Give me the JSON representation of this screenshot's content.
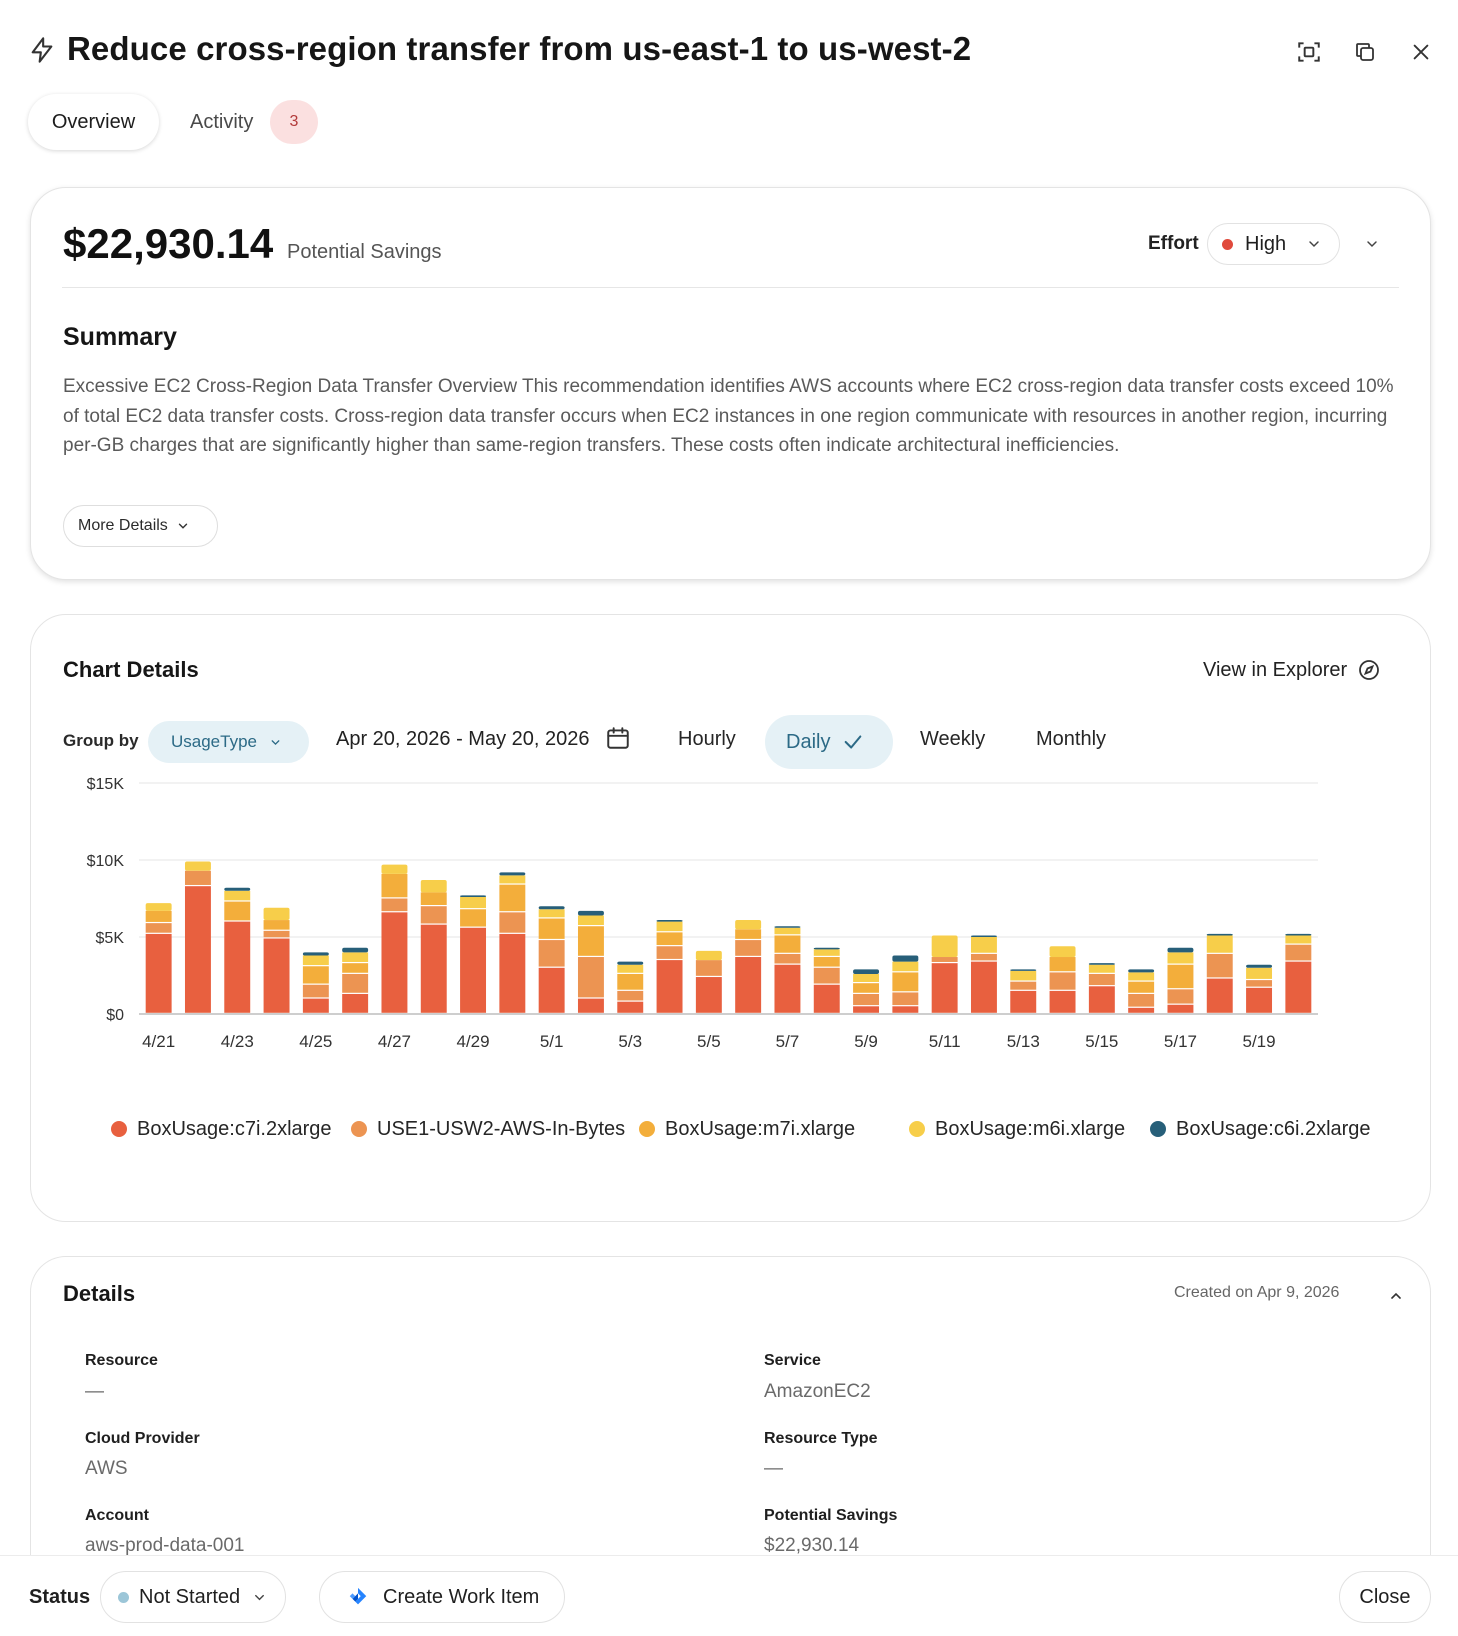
{
  "header": {
    "title": "Reduce cross-region transfer from us-east-1 to us-west-2",
    "icons": [
      "bolt-icon",
      "focus-icon",
      "copy-icon",
      "close-icon"
    ]
  },
  "tabs": {
    "overview": "Overview",
    "activity": "Activity",
    "activity_count": "3"
  },
  "savings": {
    "amount": "$22,930.14",
    "label": "Potential Savings",
    "effort_label": "Effort",
    "effort_value": "High",
    "effort_color": "#e04a3c"
  },
  "summary": {
    "title": "Summary",
    "text": "Excessive EC2 Cross-Region Data Transfer Overview This recommendation identifies AWS accounts where EC2 cross-region data transfer costs exceed 10% of total EC2 data transfer costs. Cross-region data transfer occurs when EC2 instances in one region communicate with resources in another region, incurring per-GB charges that are significantly higher than same-region transfers. These costs often indicate architectural inefficiencies.",
    "more_details": "More Details"
  },
  "chart_section": {
    "title": "Chart Details",
    "view_explorer": "View in Explorer",
    "group_by_label": "Group by",
    "group_by_value": "UsageType",
    "date_range": "Apr 20, 2026 - May 20, 2026",
    "periods": {
      "hourly": "Hourly",
      "daily": "Daily",
      "weekly": "Weekly",
      "monthly": "Monthly"
    },
    "active_period": "Daily"
  },
  "chart_data": {
    "type": "bar",
    "stacked": true,
    "categories": [
      "4/21",
      "4/22",
      "4/23",
      "4/24",
      "4/25",
      "4/26",
      "4/27",
      "4/28",
      "4/29",
      "4/30",
      "5/1",
      "5/2",
      "5/3",
      "5/4",
      "5/5",
      "5/6",
      "5/7",
      "5/8",
      "5/9",
      "5/10",
      "5/11",
      "5/12",
      "5/13",
      "5/14",
      "5/15",
      "5/16",
      "5/17",
      "5/18",
      "5/19",
      "5/20"
    ],
    "tick_labels": [
      "4/21",
      "4/23",
      "4/25",
      "4/27",
      "4/29",
      "5/1",
      "5/3",
      "5/5",
      "5/7",
      "5/9",
      "5/11",
      "5/13",
      "5/15",
      "5/17",
      "5/19"
    ],
    "y_ticks": [
      "$0",
      "$5K",
      "$10K",
      "$15K"
    ],
    "ylim": [
      0,
      15000
    ],
    "grid": true,
    "legend_position": "bottom",
    "series": [
      {
        "name": "BoxUsage:c7i.2xlarge",
        "color": "#e8603f",
        "values": [
          5200,
          8300,
          6000,
          4900,
          1000,
          1300,
          6600,
          5800,
          5600,
          5200,
          3000,
          1000,
          800,
          3500,
          2400,
          3700,
          3200,
          1900,
          500,
          500,
          3300,
          3400,
          1500,
          1500,
          1800,
          400,
          600,
          2300,
          1700,
          3400
        ]
      },
      {
        "name": "USE1-USW2-AWS-In-Bytes",
        "color": "#ec9452",
        "values": [
          700,
          1000,
          0,
          500,
          900,
          1300,
          900,
          1200,
          0,
          1400,
          1800,
          2700,
          700,
          900,
          1100,
          1100,
          700,
          1100,
          800,
          900,
          400,
          500,
          600,
          1200,
          800,
          900,
          1000,
          1600,
          500,
          1100
        ]
      },
      {
        "name": "BoxUsage:m7i.xlarge",
        "color": "#f3ae3b",
        "values": [
          800,
          0,
          1300,
          700,
          1200,
          700,
          1600,
          900,
          1200,
          1800,
          1400,
          2000,
          1100,
          900,
          0,
          700,
          1200,
          700,
          700,
          1300,
          0,
          0,
          0,
          1000,
          0,
          800,
          1600,
          0,
          0,
          0
        ]
      },
      {
        "name": "BoxUsage:m6i.xlarge",
        "color": "#f7ce4a",
        "values": [
          500,
          600,
          700,
          800,
          700,
          700,
          600,
          800,
          800,
          600,
          600,
          700,
          600,
          700,
          600,
          600,
          500,
          500,
          600,
          700,
          1400,
          1100,
          700,
          700,
          600,
          600,
          800,
          1200,
          800,
          600
        ]
      },
      {
        "name": "BoxUsage:c6i.2xlarge",
        "color": "#275f79",
        "values": [
          0,
          0,
          200,
          0,
          200,
          300,
          0,
          0,
          100,
          200,
          200,
          300,
          200,
          100,
          0,
          0,
          100,
          100,
          300,
          400,
          0,
          100,
          100,
          0,
          100,
          200,
          300,
          100,
          200,
          100
        ]
      }
    ]
  },
  "details": {
    "title": "Details",
    "created": "Created on Apr 9, 2026",
    "resource_label": "Resource",
    "resource_value": "—",
    "service_label": "Service",
    "service_value": "AmazonEC2",
    "cloud_provider_label": "Cloud Provider",
    "cloud_provider_value": "AWS",
    "resource_type_label": "Resource Type",
    "resource_type_value": "—",
    "account_label": "Account",
    "account_value": "aws-prod-data-001",
    "potential_savings_label": "Potential Savings",
    "potential_savings_value": "$22,930.14"
  },
  "footer": {
    "status_label": "Status",
    "status_value": "Not Started",
    "status_color": "#9cc6d8",
    "create_work_item": "Create Work Item",
    "close": "Close"
  }
}
